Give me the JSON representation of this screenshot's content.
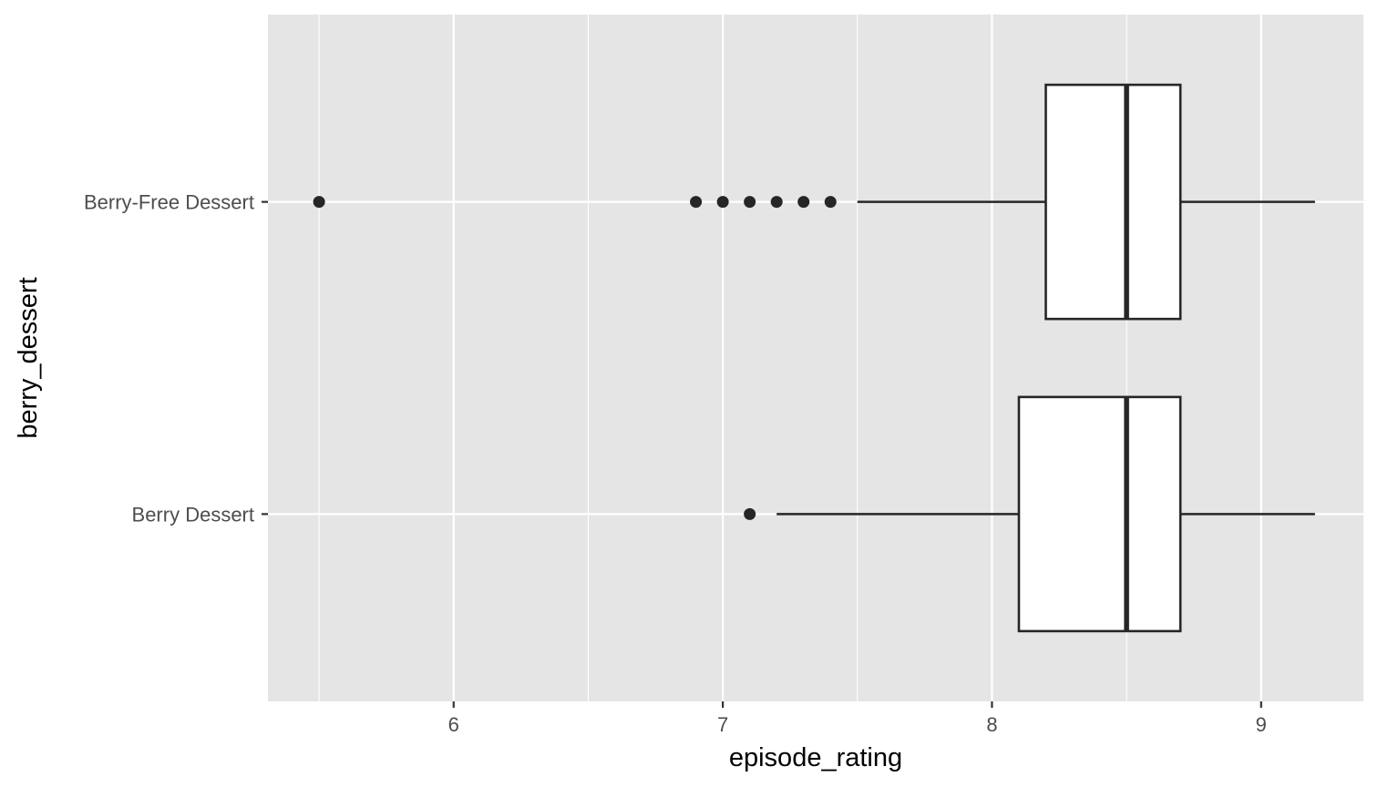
{
  "chart_data": {
    "type": "boxplot",
    "orientation": "horizontal",
    "xlabel": "episode_rating",
    "ylabel": "berry_dessert",
    "xlim": [
      5.31,
      9.38
    ],
    "x_ticks": [
      6,
      7,
      8,
      9
    ],
    "x_minor_ticks": [
      5.5,
      6.5,
      7.5,
      8.5
    ],
    "categories": [
      "Berry Dessert",
      "Berry-Free Dessert"
    ],
    "grid": true,
    "legend": "none",
    "colors": {
      "panel": "#e5e5e5",
      "grid": "#ffffff",
      "box_fill": "#ffffff",
      "stroke": "#262626",
      "tick_text": "#4d4d4d"
    },
    "boxes": [
      {
        "category": "Berry-Free Dessert",
        "q1": 8.2,
        "median": 8.5,
        "q3": 8.7,
        "whisker_low": 7.5,
        "whisker_high": 9.2,
        "outliers": [
          5.5,
          6.9,
          7.0,
          7.1,
          7.2,
          7.3,
          7.4
        ]
      },
      {
        "category": "Berry Dessert",
        "q1": 8.1,
        "median": 8.5,
        "q3": 8.7,
        "whisker_low": 7.2,
        "whisker_high": 9.2,
        "outliers": [
          7.1
        ]
      }
    ]
  }
}
